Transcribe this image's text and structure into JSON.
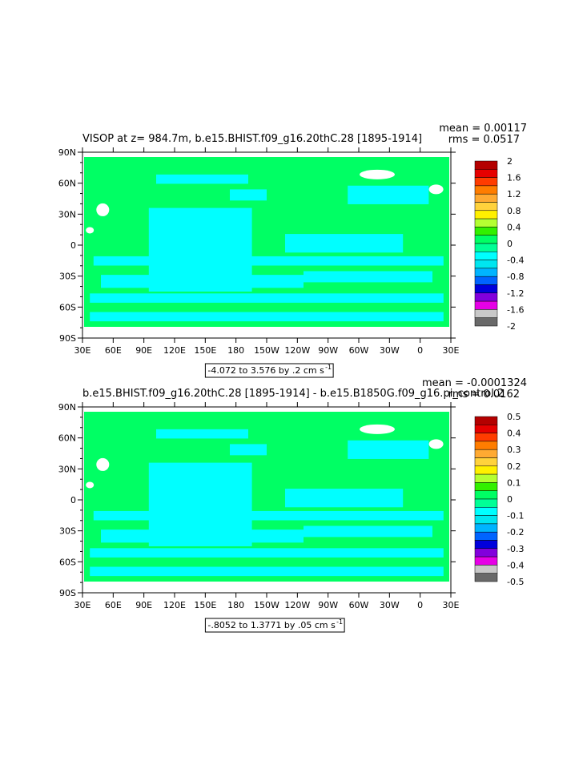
{
  "panels": [
    {
      "title": "VISOP at z= 984.7m, b.e15.BHIST.f09_g16.20thC.28 [1895-1914]",
      "stats": [
        "mean = 0.00117",
        "rms = 0.0517"
      ],
      "range_label": "-4.072 to 3.576 by .2 cm s",
      "range_unit_sup": "-1",
      "colorbar": {
        "labels": [
          "2",
          "1.6",
          "1.2",
          "0.8",
          "0.4",
          "0",
          "-0.4",
          "-0.8",
          "-1.2",
          "-1.6",
          "-2"
        ],
        "colors": [
          "#b40000",
          "#e60000",
          "#ff3c00",
          "#ff7d00",
          "#ffaa32",
          "#ffd23c",
          "#fff000",
          "#b4ff32",
          "#32f000",
          "#00ff64",
          "#00ff96",
          "#00ffff",
          "#00e6f0",
          "#00b4ff",
          "#0064ff",
          "#0000dc",
          "#8200dc",
          "#e600e6",
          "#c8c8c8",
          "#696969"
        ]
      }
    },
    {
      "title": "b.e15.BHIST.f09_g16.20thC.28 [1895-1914] - b.e15.B1850G.f09_g16.pi_control.2",
      "stats": [
        "mean = -0.0001324",
        "rms = 0.0162"
      ],
      "range_label": "-.8052 to 1.3771 by .05 cm s",
      "range_unit_sup": "-1",
      "colorbar": {
        "labels": [
          "0.5",
          "0.4",
          "0.3",
          "0.2",
          "0.1",
          "0",
          "-0.1",
          "-0.2",
          "-0.3",
          "-0.4",
          "-0.5"
        ],
        "colors": [
          "#b40000",
          "#e60000",
          "#ff3c00",
          "#ff7d00",
          "#ffaa32",
          "#ffd23c",
          "#fff000",
          "#b4ff32",
          "#32f000",
          "#00ff64",
          "#00ff96",
          "#00ffff",
          "#00e6f0",
          "#00b4ff",
          "#0064ff",
          "#0000dc",
          "#8200dc",
          "#e600e6",
          "#c8c8c8",
          "#696969"
        ]
      }
    }
  ],
  "axes": {
    "y_labels": [
      "90N",
      "60N",
      "30N",
      "0",
      "30S",
      "60S",
      "90S"
    ],
    "x_labels": [
      "30E",
      "60E",
      "90E",
      "120E",
      "150E",
      "180",
      "150W",
      "120W",
      "90W",
      "60W",
      "30W",
      "0",
      "30E"
    ]
  },
  "field_colors": {
    "background": "#00ff64",
    "negative": "#00ffff",
    "land": "#ffffff"
  }
}
